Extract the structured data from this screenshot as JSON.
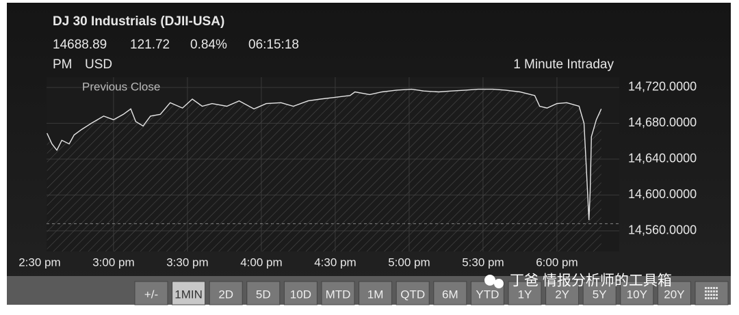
{
  "header": {
    "title": "DJ 30 Industrials (DJII-USA)",
    "last": "14688.89",
    "change": "121.72",
    "change_pct": "0.84%",
    "time": "06:15:18",
    "meridiem": "PM",
    "currency": "USD",
    "interval": "1 Minute Intraday"
  },
  "chart_data": {
    "type": "line",
    "x": [
      873,
      875,
      877,
      879,
      882,
      884,
      887,
      891,
      896,
      900,
      904,
      907,
      909,
      912,
      915,
      919,
      923,
      928,
      932,
      936,
      940,
      946,
      951,
      957,
      962,
      968,
      973,
      979,
      984,
      990,
      996,
      998,
      1004,
      1009,
      1015,
      1021,
      1026,
      1032,
      1037,
      1043,
      1048,
      1054,
      1059,
      1065,
      1071,
      1073,
      1076,
      1080,
      1084,
      1089,
      1091,
      1092,
      1093,
      1093.5,
      1094,
      1096,
      1097,
      1098
    ],
    "series": [
      {
        "color": "#e6e6e6",
        "values": [
          14669,
          14657,
          14650,
          14661,
          14657,
          14667,
          14673,
          14680,
          14688,
          14684,
          14690,
          14696,
          14682,
          14677,
          14688,
          14690,
          14703,
          14697,
          14707,
          14699,
          14702,
          14699,
          14705,
          14696,
          14702,
          14703,
          14699,
          14705,
          14707,
          14709,
          14711,
          14715,
          14712,
          14715,
          14717,
          14718,
          14716,
          14715,
          14716,
          14717,
          14718,
          14718,
          14717,
          14715,
          14711,
          14699,
          14697,
          14702,
          14703,
          14699,
          14680,
          14627,
          14572,
          14604,
          14665,
          14684,
          14690,
          14696
        ]
      }
    ],
    "xlim": [
      872.8,
      1105.3
    ],
    "ylim": [
      14537,
      14731.4
    ],
    "xticks": [
      {
        "value": 870,
        "label": "2:30 pm"
      },
      {
        "value": 900,
        "label": "3:00 pm"
      },
      {
        "value": 930,
        "label": "3:30 pm"
      },
      {
        "value": 960,
        "label": "4:00 pm"
      },
      {
        "value": 990,
        "label": "4:30 pm"
      },
      {
        "value": 1020,
        "label": "5:00 pm"
      },
      {
        "value": 1050,
        "label": "5:30 pm"
      },
      {
        "value": 1080,
        "label": "6:00 pm"
      }
    ],
    "yticks": [
      {
        "value": 14720,
        "label": "14,720.0000"
      },
      {
        "value": 14680,
        "label": "14,680.0000"
      },
      {
        "value": 14640,
        "label": "14,640.0000"
      },
      {
        "value": 14600,
        "label": "14,600.0000"
      },
      {
        "value": 14560,
        "label": "14,560.0000"
      }
    ],
    "reference_line": {
      "label": "Previous Close",
      "value": 14568
    },
    "grid": true
  },
  "toolbar": {
    "buttons": [
      "+/-",
      "1MIN",
      "2D",
      "5D",
      "10D",
      "MTD",
      "1M",
      "QTD",
      "6M",
      "YTD",
      "1Y",
      "2Y",
      "5Y",
      "10Y",
      "20Y"
    ],
    "selected_index": 1
  },
  "watermark": "丁爸 情报分析师的工具箱"
}
